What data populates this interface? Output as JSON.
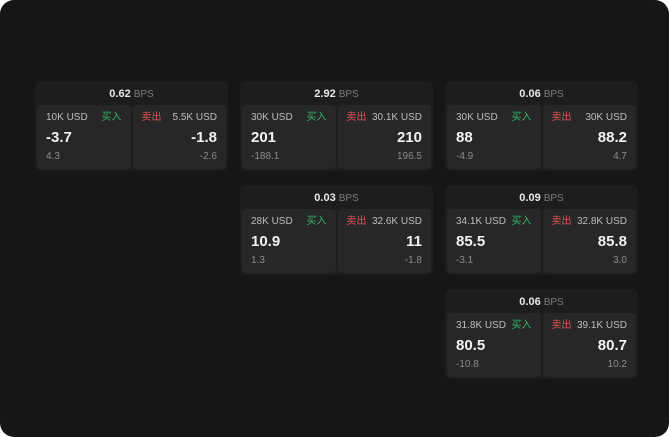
{
  "labels": {
    "bps": "BPS",
    "buy": "买入",
    "sell": "卖出"
  },
  "colors": {
    "background": "#161616",
    "card": "#1d1d1d",
    "panel": "#272727",
    "buy_green": "#35b56a",
    "sell_red": "#e05252",
    "text_primary": "#f2f2f2",
    "text_secondary": "#8c8c8c"
  },
  "cards": [
    {
      "bps": "0.62",
      "buy": {
        "amount": "10K USD",
        "price": "-3.7",
        "sub": "4.3"
      },
      "sell": {
        "amount": "5.5K USD",
        "price": "-1.8",
        "sub": "-2.6"
      }
    },
    {
      "bps": "2.92",
      "buy": {
        "amount": "30K USD",
        "price": "201",
        "sub": "-188.1"
      },
      "sell": {
        "amount": "30.1K USD",
        "price": "210",
        "sub": "196.5"
      }
    },
    {
      "bps": "0.06",
      "buy": {
        "amount": "30K USD",
        "price": "88",
        "sub": "-4.9"
      },
      "sell": {
        "amount": "30K USD",
        "price": "88.2",
        "sub": "4.7"
      }
    },
    {
      "bps": "0.03",
      "buy": {
        "amount": "28K USD",
        "price": "10.9",
        "sub": "1.3"
      },
      "sell": {
        "amount": "32.6K USD",
        "price": "11",
        "sub": "-1.8"
      }
    },
    {
      "bps": "0.09",
      "buy": {
        "amount": "34.1K USD",
        "price": "85.5",
        "sub": "-3.1"
      },
      "sell": {
        "amount": "32.8K USD",
        "price": "85.8",
        "sub": "3.0"
      }
    },
    {
      "bps": "0.06",
      "buy": {
        "amount": "31.8K USD",
        "price": "80.5",
        "sub": "-10.8"
      },
      "sell": {
        "amount": "39.1K USD",
        "price": "80.7",
        "sub": "10.2"
      }
    }
  ]
}
